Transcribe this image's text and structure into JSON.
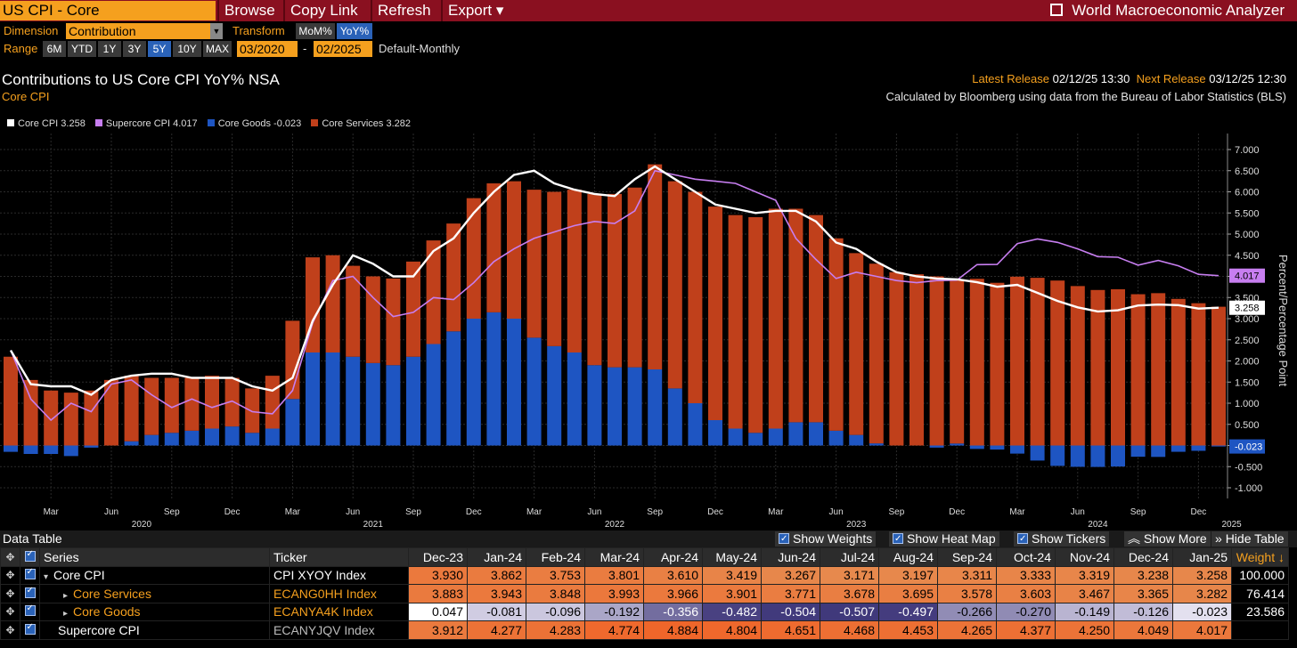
{
  "topbar": {
    "title": "US CPI - Core",
    "menu": [
      "Browse",
      "Copy Link",
      "Refresh",
      "Export ▾"
    ],
    "app_name": "World Macroeconomic Analyzer"
  },
  "controls": {
    "dimension_label": "Dimension",
    "dimension_value": "Contribution",
    "transform_label": "Transform",
    "transform_options": [
      "MoM%",
      "YoY%"
    ],
    "transform_selected": "YoY%",
    "range_label": "Range",
    "range_options": [
      "6M",
      "YTD",
      "1Y",
      "3Y",
      "5Y",
      "10Y",
      "MAX"
    ],
    "range_selected": "5Y",
    "start": "03/2020",
    "dash": "-",
    "end": "02/2025",
    "frequency": "Default-Monthly"
  },
  "header": {
    "title": "Contributions to US Core CPI YoY% NSA",
    "subtitle": "Core CPI",
    "latest_label": "Latest Release",
    "latest_value": "02/12/25 13:30",
    "next_label": "Next Release",
    "next_value": "03/12/25 12:30",
    "source": "Calculated by Bloomberg using data from the Bureau of Labor Statistics (BLS)"
  },
  "legend": [
    {
      "label": "Core CPI 3.258",
      "color": "#ffffff"
    },
    {
      "label": "Supercore CPI 4.017",
      "color": "#c77ef0"
    },
    {
      "label": "Core Goods -0.023",
      "color": "#1e55c2"
    },
    {
      "label": "Core Services 3.282",
      "color": "#c0401b"
    }
  ],
  "colors": {
    "core_cpi": "#ffffff",
    "supercore": "#c77ef0",
    "goods": "#1e55c2",
    "services": "#c0401b",
    "accent": "#f5a01e",
    "menu_bg": "#8a1020"
  },
  "chart_data": {
    "type": "bar",
    "stacked": true,
    "ylabel": "Percent/Percentage Point",
    "ylim": [
      -1.0,
      7.0
    ],
    "y_ticks": [
      "7.000",
      "6.500",
      "6.000",
      "5.500",
      "5.000",
      "4.500",
      "4.000",
      "3.500",
      "3.000",
      "2.500",
      "2.000",
      "1.500",
      "1.000",
      "0.500",
      "0.000",
      "-0.500",
      "-1.000"
    ],
    "grid": true,
    "x_tick_labels": [
      "Mar",
      "Jun",
      "Sep",
      "Dec",
      "Mar",
      "Jun",
      "Sep",
      "Dec",
      "Mar",
      "Jun",
      "Sep",
      "Dec",
      "Mar",
      "Jun",
      "Sep",
      "Dec",
      "Mar",
      "Jun",
      "Sep",
      "Dec"
    ],
    "x_year_labels": [
      "2020",
      "2021",
      "2022",
      "2023",
      "2024",
      "2025"
    ],
    "categories": [
      "Jan-20",
      "Feb-20",
      "Mar-20",
      "Apr-20",
      "May-20",
      "Jun-20",
      "Jul-20",
      "Aug-20",
      "Sep-20",
      "Oct-20",
      "Nov-20",
      "Dec-20",
      "Jan-21",
      "Feb-21",
      "Mar-21",
      "Apr-21",
      "May-21",
      "Jun-21",
      "Jul-21",
      "Aug-21",
      "Sep-21",
      "Oct-21",
      "Nov-21",
      "Dec-21",
      "Jan-22",
      "Feb-22",
      "Mar-22",
      "Apr-22",
      "May-22",
      "Jun-22",
      "Jul-22",
      "Aug-22",
      "Sep-22",
      "Oct-22",
      "Nov-22",
      "Dec-22",
      "Jan-23",
      "Feb-23",
      "Mar-23",
      "Apr-23",
      "May-23",
      "Jun-23",
      "Jul-23",
      "Aug-23",
      "Sep-23",
      "Oct-23",
      "Nov-23",
      "Dec-23",
      "Jan-24",
      "Feb-24",
      "Mar-24",
      "Apr-24",
      "May-24",
      "Jun-24",
      "Jul-24",
      "Aug-24",
      "Sep-24",
      "Oct-24",
      "Nov-24",
      "Dec-24",
      "Jan-25"
    ],
    "series": [
      {
        "name": "Core Services",
        "kind": "bar",
        "values": [
          2.1,
          1.55,
          1.3,
          1.25,
          1.3,
          1.55,
          1.55,
          1.35,
          1.3,
          1.25,
          1.25,
          1.15,
          1.05,
          1.25,
          1.85,
          2.25,
          2.3,
          2.15,
          2.05,
          2.05,
          2.25,
          2.45,
          2.55,
          2.85,
          3.05,
          3.25,
          3.5,
          3.65,
          3.85,
          4.05,
          4.1,
          4.25,
          4.85,
          4.9,
          5.0,
          5.05,
          5.05,
          5.1,
          5.2,
          5.05,
          4.9,
          4.55,
          4.3,
          4.25,
          4.1,
          4.05,
          4.0,
          3.883,
          3.943,
          3.848,
          3.993,
          3.966,
          3.901,
          3.771,
          3.678,
          3.695,
          3.578,
          3.603,
          3.467,
          3.365,
          3.282
        ]
      },
      {
        "name": "Core Goods",
        "kind": "bar",
        "values": [
          -0.15,
          -0.2,
          -0.2,
          -0.25,
          -0.05,
          0.0,
          0.1,
          0.25,
          0.3,
          0.35,
          0.4,
          0.45,
          0.3,
          0.4,
          1.1,
          2.2,
          2.2,
          2.1,
          1.95,
          1.9,
          2.1,
          2.4,
          2.7,
          3.0,
          3.15,
          3.0,
          2.55,
          2.35,
          2.2,
          1.9,
          1.85,
          1.85,
          1.8,
          1.35,
          1.0,
          0.6,
          0.4,
          0.3,
          0.4,
          0.55,
          0.55,
          0.35,
          0.25,
          0.05,
          0.0,
          0.0,
          -0.05,
          0.047,
          -0.081,
          -0.096,
          -0.192,
          -0.356,
          -0.482,
          -0.504,
          -0.507,
          -0.497,
          -0.266,
          -0.27,
          -0.149,
          -0.126,
          -0.023
        ]
      },
      {
        "name": "Core CPI",
        "kind": "line",
        "values": [
          2.25,
          1.45,
          1.4,
          1.4,
          1.2,
          1.55,
          1.65,
          1.7,
          1.7,
          1.6,
          1.6,
          1.6,
          1.4,
          1.3,
          1.6,
          2.95,
          3.8,
          4.5,
          4.3,
          4.0,
          4.0,
          4.6,
          4.9,
          5.5,
          6.0,
          6.4,
          6.5,
          6.2,
          6.05,
          5.95,
          5.9,
          6.3,
          6.6,
          6.3,
          6.0,
          5.7,
          5.6,
          5.5,
          5.55,
          5.55,
          5.3,
          4.8,
          4.65,
          4.35,
          4.1,
          4.0,
          3.95,
          3.93,
          3.862,
          3.753,
          3.801,
          3.61,
          3.419,
          3.267,
          3.171,
          3.197,
          3.311,
          3.333,
          3.319,
          3.238,
          3.258
        ]
      },
      {
        "name": "Supercore CPI",
        "kind": "line",
        "values": [
          2.25,
          1.1,
          0.6,
          1.0,
          0.8,
          1.45,
          1.55,
          1.2,
          0.9,
          1.1,
          0.9,
          1.05,
          0.8,
          0.75,
          1.3,
          2.9,
          3.9,
          4.0,
          3.5,
          3.05,
          3.15,
          3.5,
          3.45,
          3.85,
          4.35,
          4.65,
          4.9,
          5.05,
          5.2,
          5.3,
          5.25,
          5.55,
          6.5,
          6.4,
          6.3,
          6.25,
          6.2,
          6.0,
          5.8,
          4.9,
          4.4,
          3.95,
          4.1,
          4.0,
          3.9,
          3.85,
          3.9,
          3.912,
          4.277,
          4.283,
          4.774,
          4.884,
          4.804,
          4.651,
          4.468,
          4.453,
          4.265,
          4.377,
          4.25,
          4.049,
          4.017
        ]
      }
    ],
    "value_tags": [
      {
        "label": "4.017",
        "series": "Supercore CPI"
      },
      {
        "label": "3.258",
        "series": "Core CPI"
      },
      {
        "label": "-0.023",
        "series": "Core Goods"
      }
    ]
  },
  "datatable": {
    "title": "Data Table",
    "buttons": [
      "Show Weights",
      "Show Heat Map",
      "Show Tickers",
      "Show More",
      "Hide Table"
    ],
    "col_series": "Series",
    "col_ticker": "Ticker",
    "col_weight": "Weight ↓",
    "months": [
      "Dec-23",
      "Jan-24",
      "Feb-24",
      "Mar-24",
      "Apr-24",
      "May-24",
      "Jun-24",
      "Jul-24",
      "Aug-24",
      "Sep-24",
      "Oct-24",
      "Nov-24",
      "Dec-24",
      "Jan-25"
    ],
    "rows": [
      {
        "series": "Core CPI",
        "ticker": "CPI XYOY Index",
        "weight": "100.000",
        "expand": "▾",
        "level": 0,
        "values": [
          "3.930",
          "3.862",
          "3.753",
          "3.801",
          "3.610",
          "3.419",
          "3.267",
          "3.171",
          "3.197",
          "3.311",
          "3.333",
          "3.319",
          "3.238",
          "3.258"
        ]
      },
      {
        "series": "Core Services",
        "ticker": "ECANG0HH Index",
        "weight": "76.414",
        "expand": "▸",
        "level": 1,
        "values": [
          "3.883",
          "3.943",
          "3.848",
          "3.993",
          "3.966",
          "3.901",
          "3.771",
          "3.678",
          "3.695",
          "3.578",
          "3.603",
          "3.467",
          "3.365",
          "3.282"
        ]
      },
      {
        "series": "Core Goods",
        "ticker": "ECANYA4K Index",
        "weight": "23.586",
        "expand": "▸",
        "level": 1,
        "values": [
          "0.047",
          "-0.081",
          "-0.096",
          "-0.192",
          "-0.356",
          "-0.482",
          "-0.504",
          "-0.507",
          "-0.497",
          "-0.266",
          "-0.270",
          "-0.149",
          "-0.126",
          "-0.023"
        ]
      },
      {
        "series": "Supercore CPI",
        "ticker": "ECANYJQV Index",
        "weight": "",
        "expand": "",
        "level": 0,
        "values": [
          "3.912",
          "4.277",
          "4.283",
          "4.774",
          "4.884",
          "4.804",
          "4.651",
          "4.468",
          "4.453",
          "4.265",
          "4.377",
          "4.250",
          "4.049",
          "4.017"
        ]
      }
    ]
  }
}
